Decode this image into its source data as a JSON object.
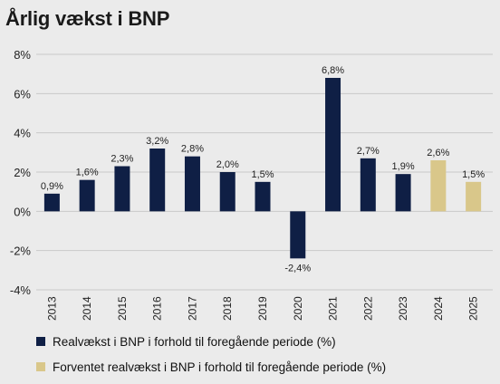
{
  "title": "Årlig vækst i BNP",
  "colors": {
    "actual": "#0f1f45",
    "forecast": "#d9c78a"
  },
  "chart_data": {
    "type": "bar",
    "title": "Årlig vækst i BNP",
    "categories": [
      "2013",
      "2014",
      "2015",
      "2016",
      "2017",
      "2018",
      "2019",
      "2020",
      "2021",
      "2022",
      "2023",
      "2024",
      "2025"
    ],
    "values": [
      0.9,
      1.6,
      2.3,
      3.2,
      2.8,
      2.0,
      1.5,
      -2.4,
      6.8,
      2.7,
      1.9,
      2.6,
      1.5
    ],
    "data_labels": [
      "0,9%",
      "1,6%",
      "2,3%",
      "3,2%",
      "2,8%",
      "2,0%",
      "1,5%",
      "-2,4%",
      "6,8%",
      "2,7%",
      "1,9%",
      "2,6%",
      "1,5%"
    ],
    "forecast": [
      false,
      false,
      false,
      false,
      false,
      false,
      false,
      false,
      false,
      false,
      false,
      true,
      true
    ],
    "series": [
      {
        "name": "Realvækst i BNP i forhold til foregående periode (%)",
        "color": "#0f1f45"
      },
      {
        "name": "Forventet realvækst i BNP i forhold til foregående periode (%)",
        "color": "#d9c78a"
      }
    ],
    "ylim": [
      -4,
      8
    ],
    "yticks": [
      -4,
      -2,
      0,
      2,
      4,
      6,
      8
    ],
    "ytick_labels": [
      "-4%",
      "-2%",
      "0%",
      "2%",
      "4%",
      "6%",
      "8%"
    ],
    "grid": true,
    "legend": "bottom-left",
    "xlabel": "",
    "ylabel": ""
  }
}
